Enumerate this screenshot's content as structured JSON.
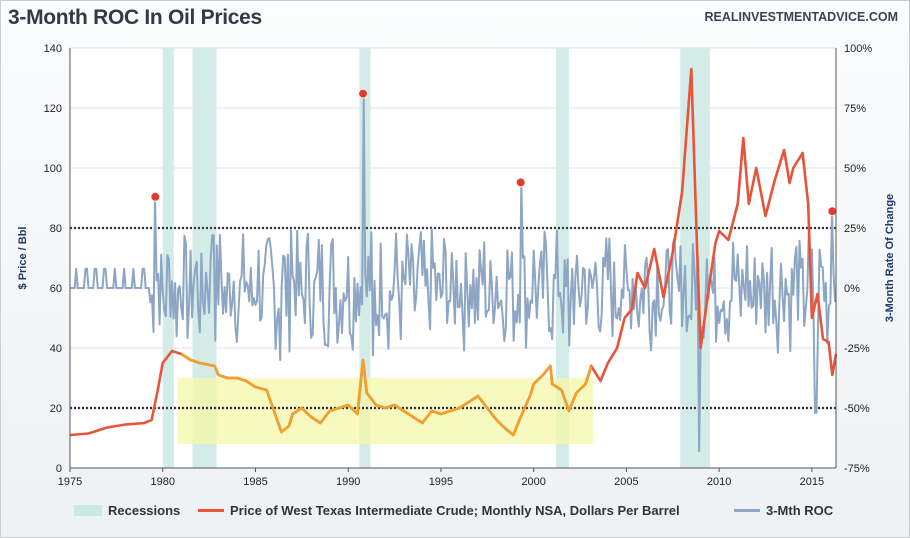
{
  "header": {
    "title": "3-Month ROC In Oil Prices",
    "source": "REALINVESTMENTADVICE.COM"
  },
  "colors": {
    "price": "#e8533a",
    "price_highlight": "#f0a02c",
    "roc": "#8ca6c4",
    "recession": "#cde9e4",
    "highlight_box": "#f5f7a8",
    "marker": "#e43b2e"
  },
  "chart_data": {
    "type": "line",
    "x_ticks": [
      "1975",
      "1980",
      "1985",
      "1990",
      "1995",
      "2000",
      "2005",
      "2010",
      "2015"
    ],
    "y_left": {
      "label": "$ Price / Bbl",
      "ticks": [
        "0",
        "20",
        "40",
        "60",
        "80",
        "100",
        "120",
        "140"
      ],
      "range": [
        0,
        140
      ]
    },
    "y_right": {
      "label": "3-Month Rate Of Change",
      "ticks": [
        "-75%",
        "-50%",
        "-25%",
        "0%",
        "25%",
        "50%",
        "75%",
        "100%"
      ],
      "range": [
        -75,
        100
      ]
    },
    "x_range": [
      1975,
      2016.3
    ],
    "grid": "horizontal",
    "reference_lines_pct": [
      25,
      -50
    ],
    "recessions": [
      [
        1980.0,
        1980.6
      ],
      [
        1981.6,
        1982.9
      ],
      [
        1990.6,
        1991.2
      ],
      [
        2001.2,
        2001.9
      ],
      [
        2007.9,
        2009.5
      ]
    ],
    "highlight_band": {
      "x": [
        1980.8,
        2003.2
      ],
      "y_price": [
        8,
        30
      ]
    },
    "peak_markers": [
      {
        "x": 1979.6,
        "pct": 38
      },
      {
        "x": 1990.8,
        "pct": 81
      },
      {
        "x": 1999.3,
        "pct": 44
      },
      {
        "x": 2016.1,
        "pct": 32
      }
    ],
    "series": [
      {
        "name": "Price of West Texas Intermediate Crude; Monthly NSA, Dollars Per Barrel",
        "axis": "left",
        "points": [
          [
            1975,
            11
          ],
          [
            1976,
            11.5
          ],
          [
            1976.5,
            12.5
          ],
          [
            1977,
            13.5
          ],
          [
            1978,
            14.5
          ],
          [
            1979,
            15
          ],
          [
            1979.4,
            16
          ],
          [
            1979.7,
            25
          ],
          [
            1980,
            35
          ],
          [
            1980.5,
            39
          ],
          [
            1981,
            38
          ],
          [
            1981.5,
            36
          ],
          [
            1982,
            35
          ],
          [
            1982.8,
            34
          ],
          [
            1983,
            31
          ],
          [
            1983.5,
            30
          ],
          [
            1984,
            30
          ],
          [
            1984.5,
            29
          ],
          [
            1985,
            27
          ],
          [
            1985.6,
            26
          ],
          [
            1986,
            19
          ],
          [
            1986.4,
            12
          ],
          [
            1986.8,
            14
          ],
          [
            1987,
            18
          ],
          [
            1987.5,
            20
          ],
          [
            1988,
            17
          ],
          [
            1988.5,
            15
          ],
          [
            1989,
            19
          ],
          [
            1989.5,
            20
          ],
          [
            1990,
            21
          ],
          [
            1990.5,
            18
          ],
          [
            1990.8,
            36
          ],
          [
            1991,
            25
          ],
          [
            1991.5,
            21
          ],
          [
            1992,
            20
          ],
          [
            1992.5,
            21
          ],
          [
            1993,
            19
          ],
          [
            1993.5,
            17
          ],
          [
            1994,
            15
          ],
          [
            1994.5,
            19
          ],
          [
            1995,
            18
          ],
          [
            1995.5,
            19
          ],
          [
            1996,
            20
          ],
          [
            1996.5,
            22
          ],
          [
            1997,
            24
          ],
          [
            1997.5,
            20
          ],
          [
            1998,
            16
          ],
          [
            1998.5,
            13
          ],
          [
            1998.9,
            11
          ],
          [
            1999.3,
            17
          ],
          [
            1999.8,
            24
          ],
          [
            2000,
            28
          ],
          [
            2000.5,
            31
          ],
          [
            2000.9,
            34
          ],
          [
            2001,
            28
          ],
          [
            2001.5,
            26
          ],
          [
            2001.9,
            19
          ],
          [
            2002.3,
            25
          ],
          [
            2002.8,
            28
          ],
          [
            2003.1,
            34
          ],
          [
            2003.6,
            29
          ],
          [
            2004,
            35
          ],
          [
            2004.5,
            40
          ],
          [
            2004.9,
            50
          ],
          [
            2005.3,
            53
          ],
          [
            2005.6,
            65
          ],
          [
            2006,
            60
          ],
          [
            2006.5,
            73
          ],
          [
            2007,
            57
          ],
          [
            2007.5,
            72
          ],
          [
            2008,
            92
          ],
          [
            2008.5,
            133
          ],
          [
            2008.8,
            75
          ],
          [
            2009,
            40
          ],
          [
            2009.4,
            58
          ],
          [
            2009.8,
            75
          ],
          [
            2010,
            79
          ],
          [
            2010.5,
            76
          ],
          [
            2011,
            88
          ],
          [
            2011.3,
            110
          ],
          [
            2011.6,
            88
          ],
          [
            2012,
            100
          ],
          [
            2012.5,
            84
          ],
          [
            2013,
            96
          ],
          [
            2013.5,
            106
          ],
          [
            2013.8,
            95
          ],
          [
            2014,
            100
          ],
          [
            2014.5,
            105
          ],
          [
            2014.8,
            88
          ],
          [
            2015,
            50
          ],
          [
            2015.3,
            58
          ],
          [
            2015.6,
            43
          ],
          [
            2015.9,
            42
          ],
          [
            2016.1,
            31
          ],
          [
            2016.3,
            38
          ]
        ]
      },
      {
        "name": "3-Mth ROC",
        "axis": "right",
        "points": "generated"
      }
    ]
  },
  "legend": {
    "recessions": "Recessions",
    "price": "Price of West Texas Intermediate Crude; Monthly NSA, Dollars Per Barrel",
    "roc": "3-Mth ROC"
  }
}
